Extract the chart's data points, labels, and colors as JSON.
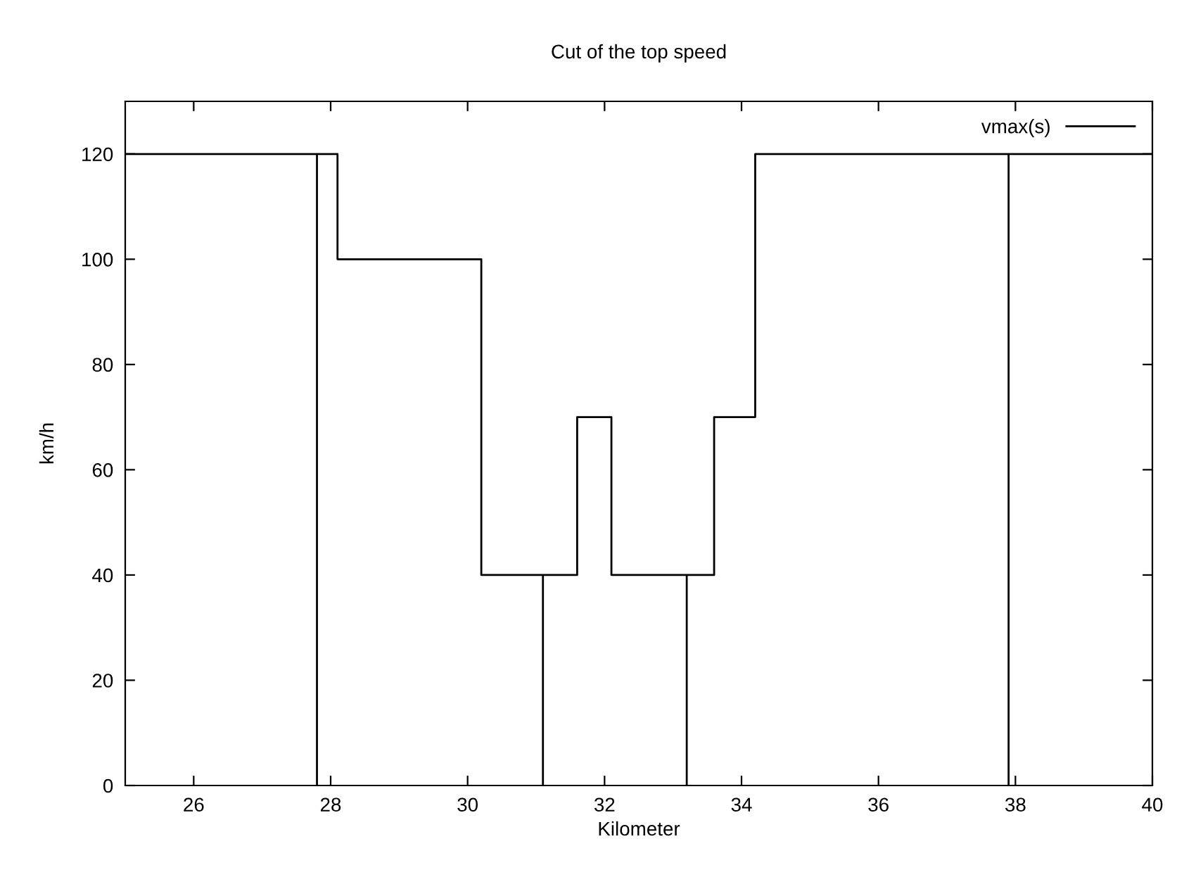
{
  "chart_data": {
    "type": "line",
    "title": "Cut of the top speed",
    "xlabel": "Kilometer",
    "ylabel": "km/h",
    "xlim": [
      25,
      40
    ],
    "xticks": [
      26,
      28,
      30,
      32,
      34,
      36,
      38,
      40
    ],
    "ylim": [
      0,
      130
    ],
    "yticks": [
      0,
      20,
      40,
      60,
      80,
      100,
      120
    ],
    "grid": false,
    "legend": "top right",
    "marker": "none",
    "line_style": "solid",
    "series": [
      {
        "name": "vmax(s)",
        "color": "#000000",
        "x": [
          25,
          27.8,
          27.8,
          27.8,
          28.1,
          28.1,
          30.2,
          30.2,
          31.1,
          31.1,
          31.1,
          31.6,
          31.6,
          32.1,
          32.1,
          33.2,
          33.2,
          33.2,
          33.6,
          33.6,
          34.2,
          34.2,
          37.9,
          37.9,
          37.9,
          40
        ],
        "values": [
          120,
          120,
          0,
          120,
          120,
          100,
          100,
          40,
          40,
          0,
          40,
          40,
          70,
          70,
          40,
          40,
          0,
          40,
          40,
          70,
          70,
          120,
          120,
          0,
          120,
          120
        ]
      }
    ]
  }
}
